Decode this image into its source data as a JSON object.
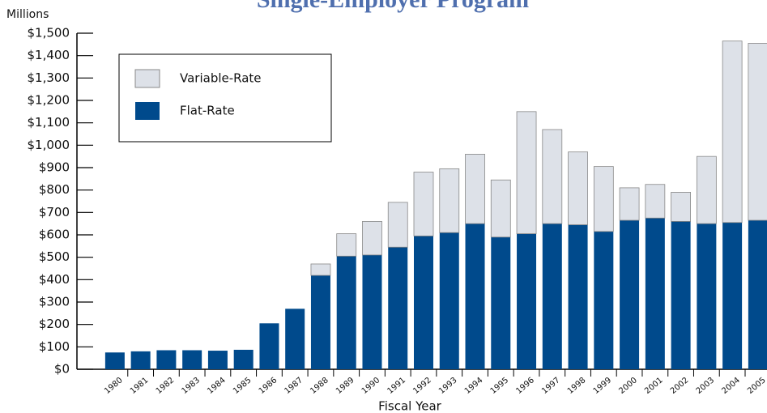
{
  "chart_data": {
    "type": "stacked-bar",
    "title": "Single-Employer Program",
    "y_unit": "Millions",
    "x_label": "Fiscal Year",
    "categories": [
      "1980",
      "1981",
      "1982",
      "1983",
      "1984",
      "1985",
      "1986",
      "1987",
      "1988",
      "1989",
      "1990",
      "1991",
      "1992",
      "1993",
      "1994",
      "1995",
      "1996",
      "1997",
      "1998",
      "1999",
      "2000",
      "2001",
      "2002",
      "2003",
      "2004",
      "2005"
    ],
    "series": [
      {
        "name": "Flat-Rate",
        "color": "#004a8c",
        "values": [
          75,
          80,
          85,
          85,
          83,
          87,
          205,
          270,
          419,
          505,
          510,
          545,
          595,
          610,
          650,
          590,
          605,
          650,
          645,
          615,
          665,
          675,
          660,
          650,
          655,
          665
        ]
      },
      {
        "name": "Variable-Rate",
        "color": "#dde1e8",
        "values": [
          0,
          0,
          0,
          0,
          0,
          0,
          0,
          0,
          51,
          100,
          150,
          200,
          285,
          285,
          310,
          255,
          545,
          420,
          325,
          290,
          145,
          150,
          130,
          300,
          810,
          790
        ]
      }
    ],
    "legend_order": [
      1,
      0
    ],
    "ylim": [
      0,
      1500
    ],
    "yticks": [
      {
        "value": 0,
        "label": "$0"
      },
      {
        "value": 100,
        "label": "$100"
      },
      {
        "value": 200,
        "label": "$200"
      },
      {
        "value": 300,
        "label": "$300"
      },
      {
        "value": 400,
        "label": "$400"
      },
      {
        "value": 500,
        "label": "$500"
      },
      {
        "value": 600,
        "label": "$600"
      },
      {
        "value": 700,
        "label": "$700"
      },
      {
        "value": 800,
        "label": "$800"
      },
      {
        "value": 900,
        "label": "$900"
      },
      {
        "value": 1000,
        "label": "$1,000"
      },
      {
        "value": 1100,
        "label": "$1,100"
      },
      {
        "value": 1200,
        "label": "$1,200"
      },
      {
        "value": 1300,
        "label": "$1,300"
      },
      {
        "value": 1400,
        "label": "$1,400"
      },
      {
        "value": 1500,
        "label": "$1,500"
      }
    ]
  }
}
